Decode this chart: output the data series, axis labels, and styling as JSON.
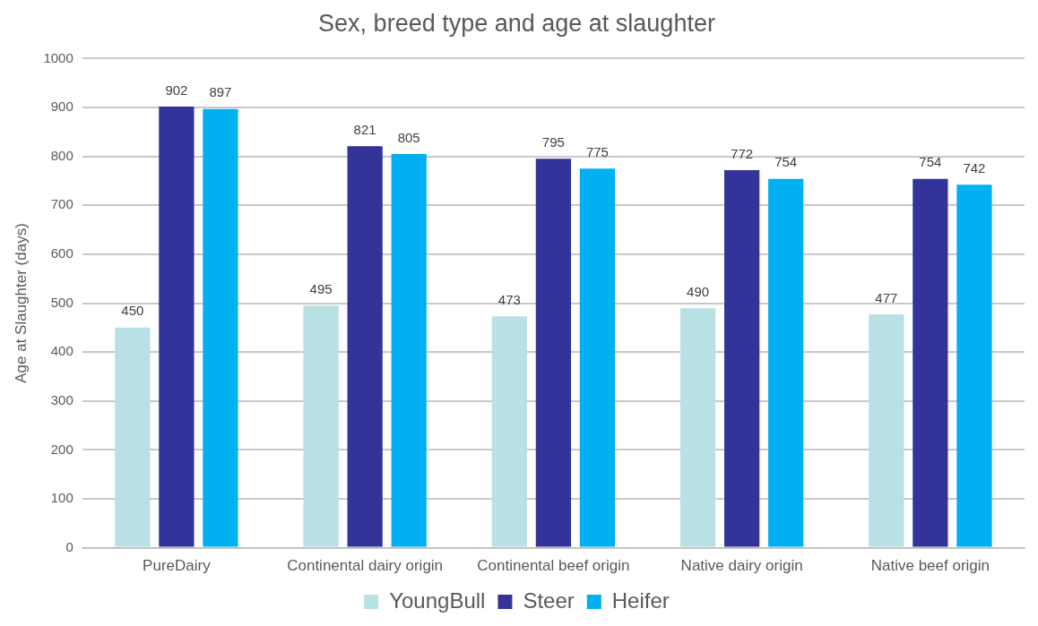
{
  "chart_data": {
    "type": "bar",
    "title": "Sex, breed type and age at slaughter",
    "ylabel": "Age at Slaughter (days)",
    "categories": [
      "PureDairy",
      "Continental dairy origin",
      "Continental beef origin",
      "Native dairy origin",
      "Native beef origin"
    ],
    "series": [
      {
        "name": "YoungBull",
        "color": "#b9e0e4",
        "values": [
          450,
          495,
          473,
          490,
          477
        ]
      },
      {
        "name": "Steer",
        "color": "#333399",
        "values": [
          902,
          821,
          795,
          772,
          754
        ]
      },
      {
        "name": "Heifer",
        "color": "#00b0f0",
        "values": [
          897,
          805,
          775,
          754,
          742
        ]
      }
    ],
    "ylim": [
      0,
      1000
    ],
    "yticks": [
      0,
      100,
      200,
      300,
      400,
      500,
      600,
      700,
      800,
      900,
      1000
    ],
    "grid": "y",
    "legend": "bottom",
    "data_labels": true
  }
}
